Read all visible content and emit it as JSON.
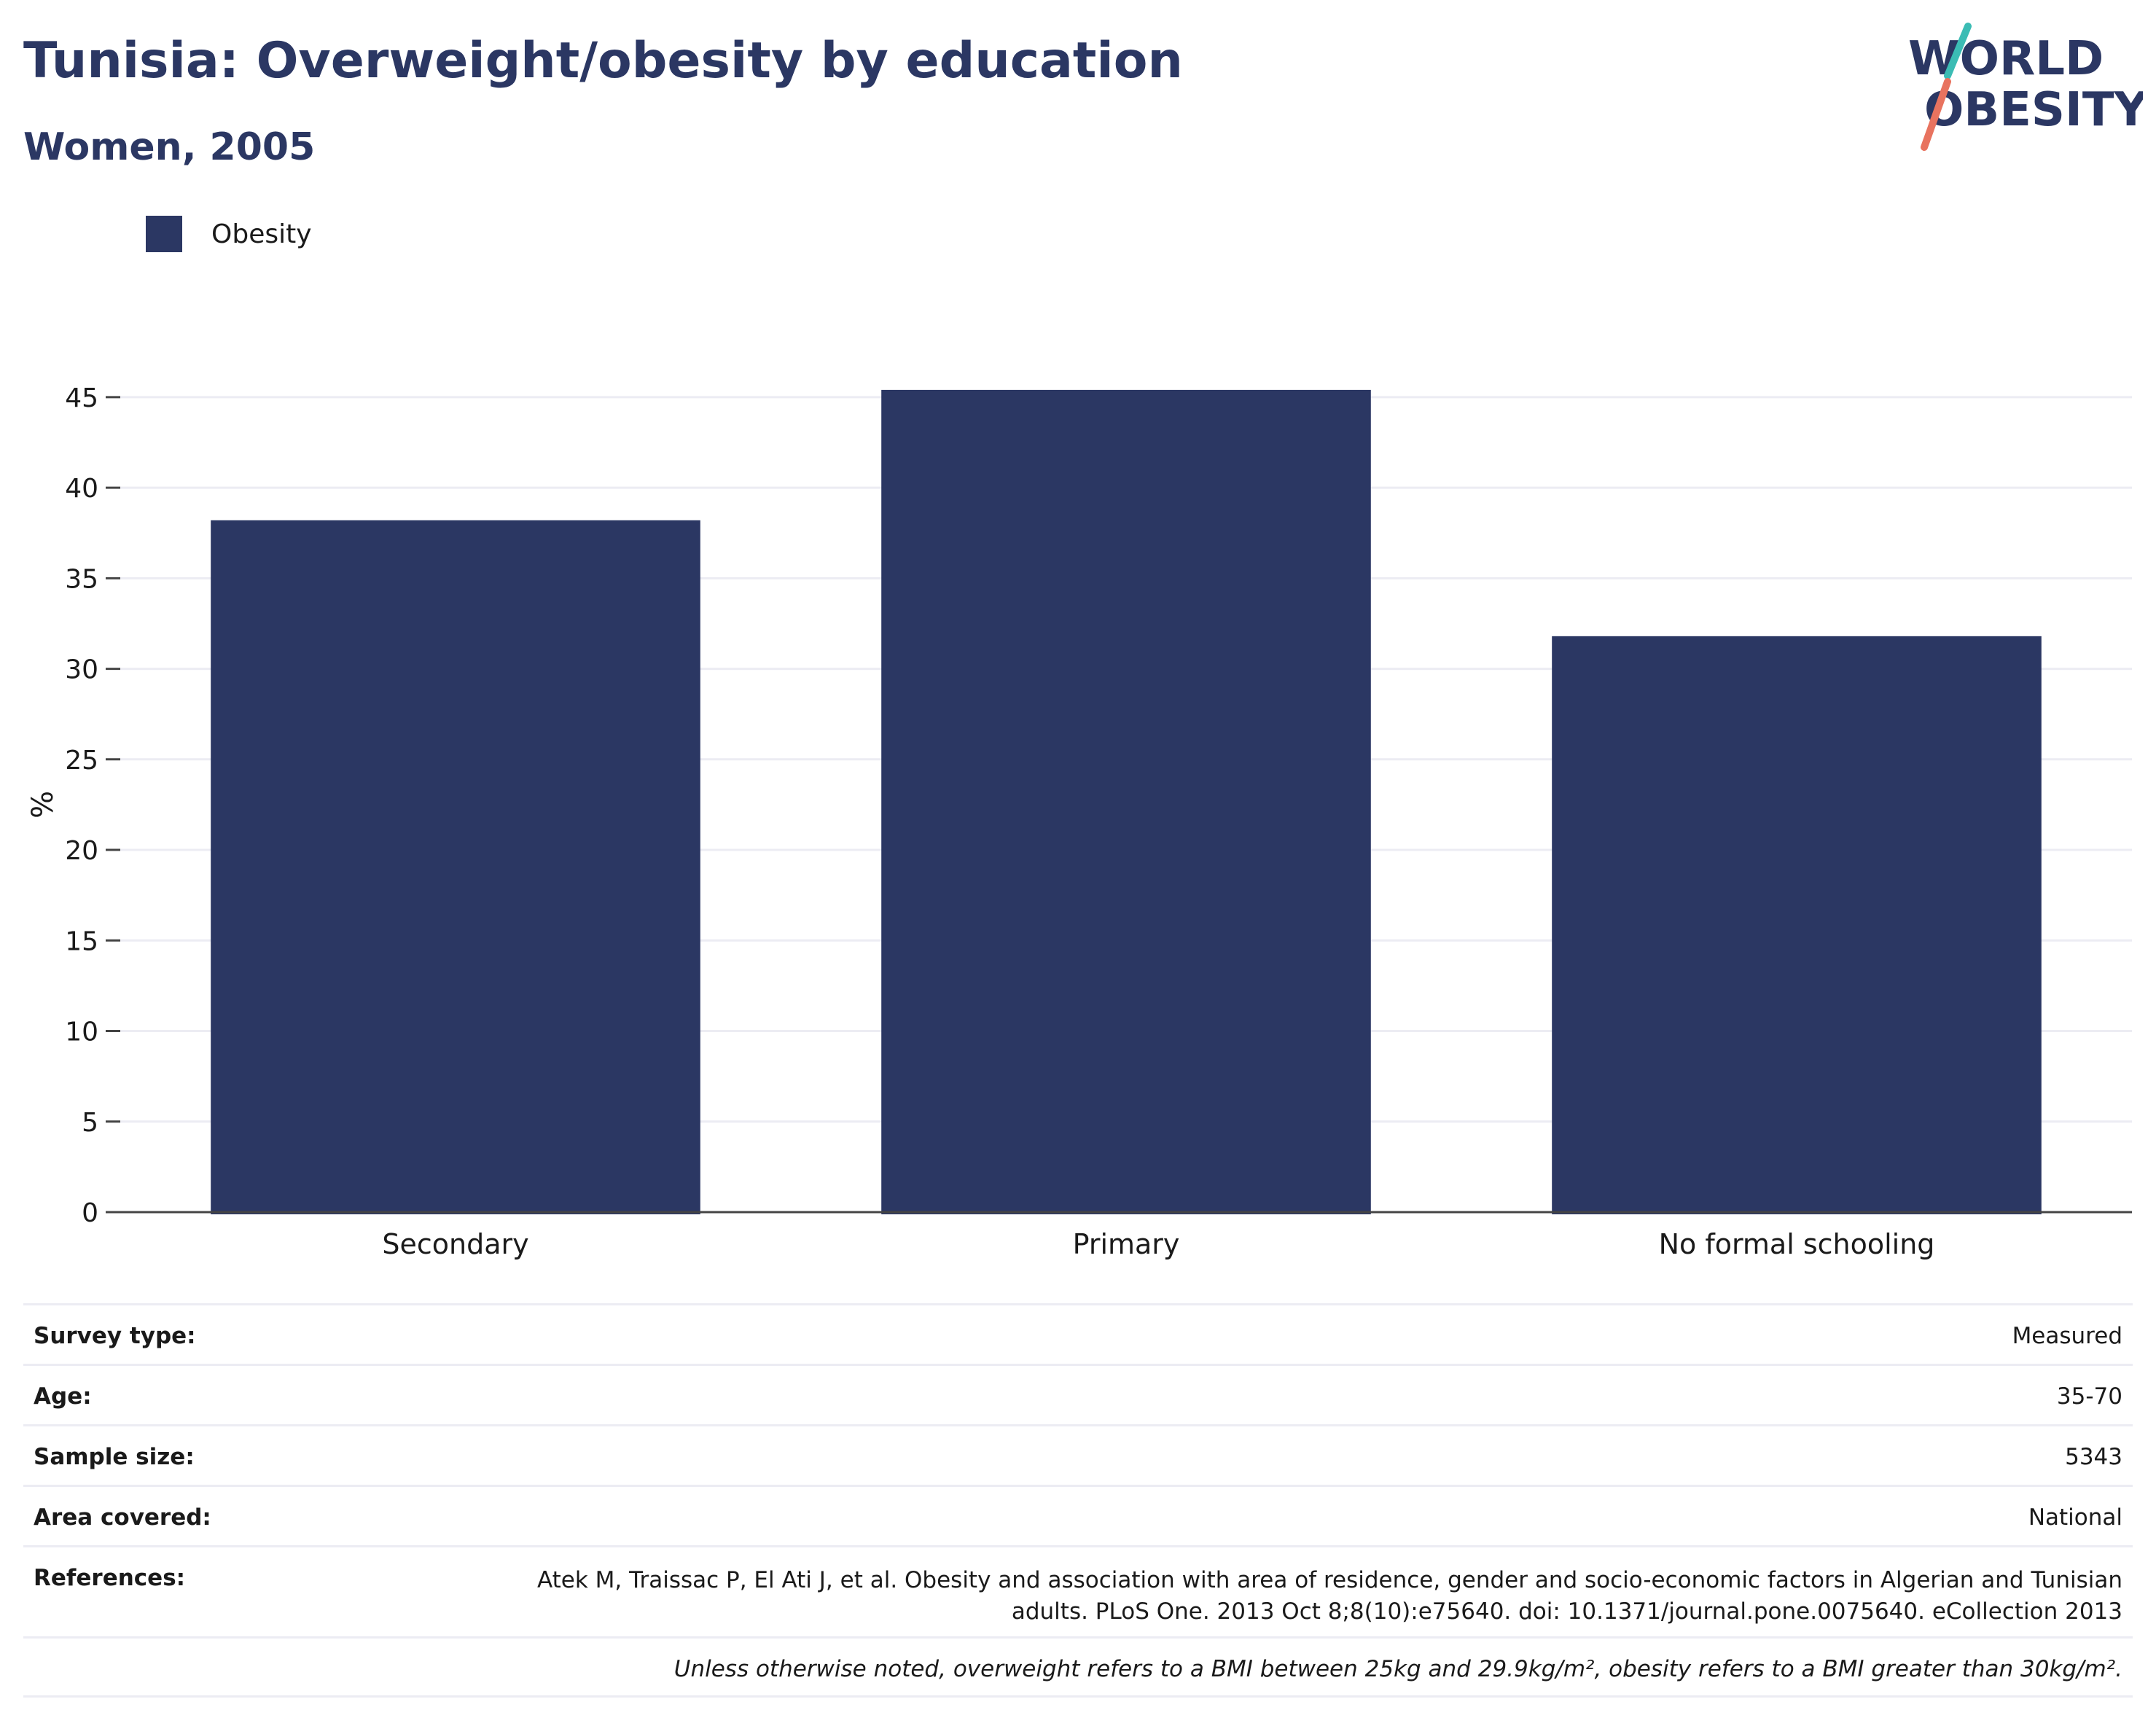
{
  "header": {
    "title": "Tunisia: Overweight/obesity by education",
    "subtitle": "Women, 2005"
  },
  "logo": {
    "line1": "WORLD",
    "line2": "OBESITY",
    "icon": "world-obesity-logo"
  },
  "colors": {
    "bar": "#2b3763",
    "text": "#2b3763",
    "grid": "#ececf3",
    "logo_slash_top": "#3bbcb4",
    "logo_slash_bottom": "#e8735f"
  },
  "chart_data": {
    "type": "bar",
    "categories": [
      "Secondary",
      "Primary",
      "No formal schooling"
    ],
    "series": [
      {
        "name": "Obesity",
        "values": [
          38.2,
          45.4,
          31.8
        ]
      }
    ],
    "xlabel": "",
    "ylabel": "%",
    "ylim": [
      0,
      45
    ],
    "yticks": [
      0,
      5,
      10,
      15,
      20,
      25,
      30,
      35,
      40,
      45
    ],
    "grid": true,
    "legend": "top-left"
  },
  "info": {
    "survey_type": {
      "label": "Survey type:",
      "value": "Measured"
    },
    "age": {
      "label": "Age:",
      "value": "35-70"
    },
    "sample_size": {
      "label": "Sample size:",
      "value": "5343"
    },
    "area_covered": {
      "label": "Area covered:",
      "value": "National"
    },
    "references": {
      "label": "References:",
      "value": "Atek M, Traissac P, El Ati J, et al. Obesity and association with area of residence, gender and socio-economic factors in Algerian and Tunisian adults. PLoS One. 2013 Oct 8;8(10):e75640. doi: 10.1371/journal.pone.0075640. eCollection 2013"
    },
    "note": "Unless otherwise noted, overweight refers to a BMI between 25kg and 29.9kg/m², obesity refers to a BMI greater than 30kg/m²."
  }
}
